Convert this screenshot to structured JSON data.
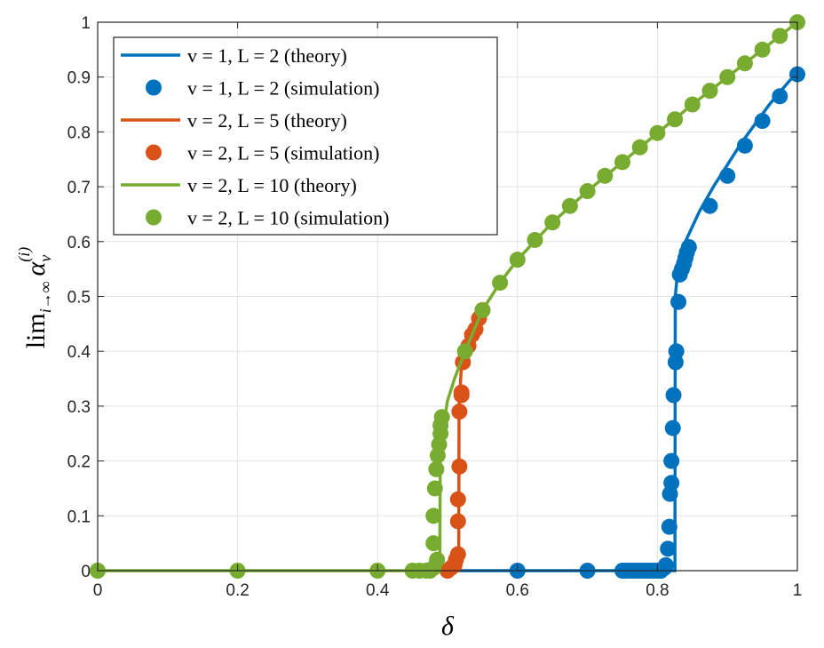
{
  "chart_data": {
    "type": "line+scatter",
    "xlabel": "δ",
    "ylabel": "lim_{i→∞} α_v^{(i)}",
    "ylabel_parts": {
      "main": "lim",
      "sub": "i→∞",
      "sym": "α",
      "symsub": "v",
      "sup": "(i)"
    },
    "xlim": [
      0,
      1
    ],
    "ylim": [
      0,
      1
    ],
    "xticks": [
      "0",
      "0.2",
      "0.4",
      "0.6",
      "0.8",
      "1"
    ],
    "yticks": [
      "0",
      "0.1",
      "0.2",
      "0.3",
      "0.4",
      "0.5",
      "0.6",
      "0.7",
      "0.8",
      "0.9",
      "1"
    ],
    "grid": true,
    "legend": "top-left",
    "series": [
      {
        "name": "v = 1, L = 2 (theory)",
        "kind": "line",
        "color": "#0072BD",
        "x": [
          0.5,
          0.825,
          0.8255,
          0.83,
          0.84,
          0.86,
          0.88,
          0.9,
          0.92,
          0.94,
          0.96,
          0.98,
          1
        ],
        "y": [
          0,
          0,
          0.5,
          0.56,
          0.6,
          0.655,
          0.7,
          0.74,
          0.78,
          0.815,
          0.85,
          0.88,
          0.91
        ]
      },
      {
        "name": "v = 1, L = 2 (simulation)",
        "kind": "scatter",
        "color": "#0072BD",
        "x": [
          0.6,
          0.7,
          0.75,
          0.755,
          0.76,
          0.765,
          0.77,
          0.775,
          0.78,
          0.785,
          0.79,
          0.795,
          0.8,
          0.805,
          0.81,
          0.812,
          0.815,
          0.817,
          0.818,
          0.82,
          0.82,
          0.822,
          0.823,
          0.826,
          0.827,
          0.83,
          0.832,
          0.835,
          0.838,
          0.84,
          0.842,
          0.845,
          0.875,
          0.9,
          0.925,
          0.95,
          0.975,
          1
        ],
        "y": [
          0,
          0,
          0,
          0,
          0,
          0,
          0,
          0,
          0,
          0,
          0,
          0,
          0,
          0,
          0.005,
          0.01,
          0.04,
          0.08,
          0.14,
          0.16,
          0.2,
          0.26,
          0.32,
          0.38,
          0.4,
          0.49,
          0.54,
          0.55,
          0.56,
          0.57,
          0.58,
          0.59,
          0.665,
          0.72,
          0.775,
          0.82,
          0.865,
          0.905
        ]
      },
      {
        "name": "v = 2, L = 5 (theory)",
        "kind": "line",
        "color": "#D95319",
        "x": [
          0.49,
          0.516,
          0.5165,
          0.52,
          0.53,
          0.54,
          0.55
        ],
        "y": [
          0,
          0,
          0.3,
          0.375,
          0.41,
          0.44,
          0.47
        ]
      },
      {
        "name": "v = 2, L = 5 (simulation)",
        "kind": "scatter",
        "color": "#D95319",
        "x": [
          0.5,
          0.505,
          0.51,
          0.512,
          0.515,
          0.515,
          0.515,
          0.517,
          0.517,
          0.52,
          0.52,
          0.522,
          0.53,
          0.535,
          0.54,
          0.545,
          0.55
        ],
        "y": [
          0,
          0.005,
          0.01,
          0.02,
          0.03,
          0.09,
          0.13,
          0.19,
          0.29,
          0.32,
          0.325,
          0.38,
          0.41,
          0.43,
          0.44,
          0.46,
          0.475
        ]
      },
      {
        "name": "v = 2, L = 10 (theory)",
        "kind": "line",
        "color": "#77AC30",
        "x": [
          0,
          0.489,
          0.4895,
          0.495,
          0.5,
          0.51,
          0.525,
          0.55,
          0.575,
          0.6,
          0.65,
          0.7,
          0.75,
          0.8,
          0.85,
          0.9,
          0.95,
          1
        ],
        "y": [
          0,
          0,
          0.2,
          0.27,
          0.31,
          0.35,
          0.4,
          0.475,
          0.525,
          0.567,
          0.635,
          0.692,
          0.745,
          0.798,
          0.85,
          0.9,
          0.95,
          1
        ]
      },
      {
        "name": "v = 2, L = 10 (simulation)",
        "kind": "scatter",
        "color": "#77AC30",
        "x": [
          0,
          0.2,
          0.4,
          0.45,
          0.46,
          0.47,
          0.475,
          0.48,
          0.485,
          0.48,
          0.48,
          0.482,
          0.484,
          0.486,
          0.488,
          0.49,
          0.49,
          0.492,
          0.525,
          0.55,
          0.575,
          0.6,
          0.625,
          0.65,
          0.675,
          0.7,
          0.725,
          0.75,
          0.775,
          0.8,
          0.825,
          0.85,
          0.875,
          0.9,
          0.925,
          0.95,
          0.975,
          1
        ],
        "y": [
          0,
          0,
          0,
          0,
          0,
          0,
          0,
          0.005,
          0.02,
          0.05,
          0.1,
          0.15,
          0.185,
          0.21,
          0.23,
          0.25,
          0.265,
          0.28,
          0.4,
          0.475,
          0.525,
          0.567,
          0.603,
          0.635,
          0.665,
          0.692,
          0.72,
          0.745,
          0.772,
          0.798,
          0.823,
          0.85,
          0.875,
          0.9,
          0.925,
          0.95,
          0.975,
          1
        ]
      }
    ]
  }
}
